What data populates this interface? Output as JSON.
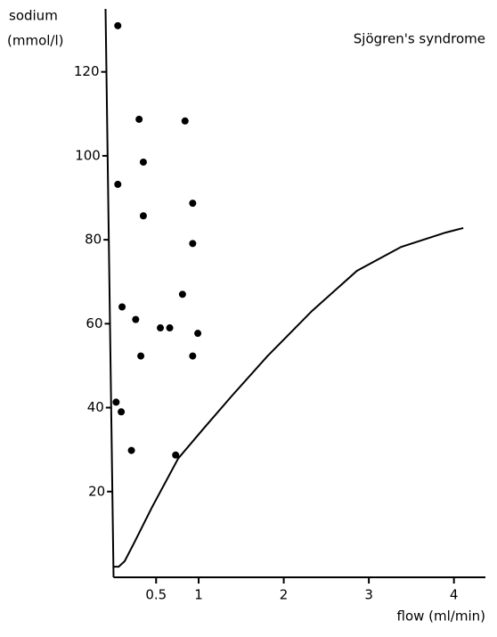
{
  "chart_data": {
    "type": "scatter",
    "title": "Sjögren's syndrome",
    "y_label": [
      "sodium",
      "(mmol/l)"
    ],
    "x_label": "flow (ml/min)",
    "xlim": [
      0,
      4.37
    ],
    "ylim": [
      0,
      135
    ],
    "xticks": [
      0.5,
      1,
      2,
      3,
      4
    ],
    "yticks": [
      20,
      40,
      60,
      80,
      100,
      120
    ],
    "series": [
      {
        "type": "scatter",
        "color": "#000000",
        "x": [
          0.05,
          0.3,
          0.84,
          0.35,
          0.05,
          0.35,
          0.93,
          0.93,
          0.81,
          0.1,
          0.26,
          0.55,
          0.66,
          0.99,
          0.32,
          0.93,
          0.03,
          0.09,
          0.21,
          0.73
        ],
        "values": [
          131,
          108.7,
          108.3,
          98.5,
          93.2,
          85.7,
          88.7,
          79.1,
          67,
          64,
          61,
          59,
          59,
          57.7,
          52.3,
          52.3,
          41.3,
          39,
          29.8,
          28.7
        ]
      },
      {
        "type": "line",
        "color": "#000000",
        "x": [
          0,
          0.06,
          0.13,
          0.24,
          0.45,
          0.76,
          1.07,
          1.39,
          1.81,
          2.33,
          2.86,
          3.38,
          3.9,
          4.11
        ],
        "values": [
          2.1,
          2.1,
          3.4,
          7.7,
          16.2,
          27.9,
          35.3,
          42.8,
          52.3,
          63,
          72.6,
          78.3,
          81.7,
          82.8
        ]
      }
    ]
  }
}
